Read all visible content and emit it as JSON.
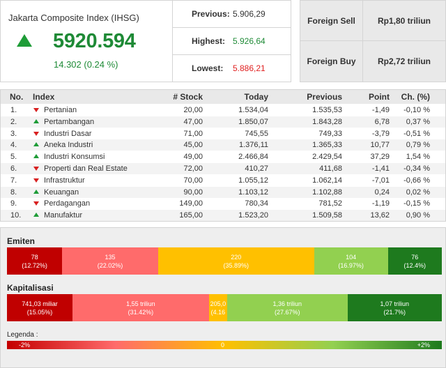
{
  "index": {
    "title": "Jakarta Composite Index (IHSG)",
    "value": "5920.594",
    "change": "14.302 (0.24 %)",
    "direction_icon": "up-triangle-icon",
    "color": "#1e8a36"
  },
  "stats": [
    {
      "label": "Previous:",
      "value": "5.906,29",
      "color": "#333333"
    },
    {
      "label": "Highest:",
      "value": "5.926,64",
      "color": "#1e8a36"
    },
    {
      "label": "Lowest:",
      "value": "5.886,21",
      "color": "#e02020"
    }
  ],
  "foreign": [
    {
      "label": "Foreign Sell",
      "value": "Rp1,80 triliun"
    },
    {
      "label": "Foreign Buy",
      "value": "Rp2,72 triliun"
    }
  ],
  "table": {
    "headers": {
      "no": "No.",
      "index": "Index",
      "stock": "# Stock",
      "today": "Today",
      "previous": "Previous",
      "point": "Point",
      "ch": "Ch. (%)"
    },
    "rows": [
      {
        "no": "1.",
        "dir": "down",
        "name": "Pertanian",
        "stock": "20,00",
        "today": "1.534,04",
        "previous": "1.535,53",
        "point": "-1,49",
        "ch": "-0,10 %"
      },
      {
        "no": "2.",
        "dir": "up",
        "name": "Pertambangan",
        "stock": "47,00",
        "today": "1.850,07",
        "previous": "1.843,28",
        "point": "6,78",
        "ch": "0,37 %"
      },
      {
        "no": "3.",
        "dir": "down",
        "name": "Industri Dasar",
        "stock": "71,00",
        "today": "745,55",
        "previous": "749,33",
        "point": "-3,79",
        "ch": "-0,51 %"
      },
      {
        "no": "4.",
        "dir": "up",
        "name": "Aneka Industri",
        "stock": "45,00",
        "today": "1.376,11",
        "previous": "1.365,33",
        "point": "10,77",
        "ch": "0,79 %"
      },
      {
        "no": "5.",
        "dir": "up",
        "name": "Industri Konsumsi",
        "stock": "49,00",
        "today": "2.466,84",
        "previous": "2.429,54",
        "point": "37,29",
        "ch": "1,54 %"
      },
      {
        "no": "6.",
        "dir": "down",
        "name": "Properti dan Real Estate",
        "stock": "72,00",
        "today": "410,27",
        "previous": "411,68",
        "point": "-1,41",
        "ch": "-0,34 %"
      },
      {
        "no": "7.",
        "dir": "down",
        "name": "Infrastruktur",
        "stock": "70,00",
        "today": "1.055,12",
        "previous": "1.062,14",
        "point": "-7,01",
        "ch": "-0,66 %"
      },
      {
        "no": "8.",
        "dir": "up",
        "name": "Keuangan",
        "stock": "90,00",
        "today": "1.103,12",
        "previous": "1.102,88",
        "point": "0,24",
        "ch": "0,02 %"
      },
      {
        "no": "9.",
        "dir": "down",
        "name": "Perdagangan",
        "stock": "149,00",
        "today": "780,34",
        "previous": "781,52",
        "point": "-1,19",
        "ch": "-0,15 %"
      },
      {
        "no": "10.",
        "dir": "up",
        "name": "Manufaktur",
        "stock": "165,00",
        "today": "1.523,20",
        "previous": "1.509,58",
        "point": "13,62",
        "ch": "0,90 %"
      }
    ]
  },
  "emiten": {
    "title": "Emiten",
    "segments": [
      {
        "value": "78",
        "pct": "(12.72%)",
        "fraction": 0.1272,
        "color": "#c00000"
      },
      {
        "value": "135",
        "pct": "(22.02%)",
        "fraction": 0.2202,
        "color": "#ff6b6b"
      },
      {
        "value": "220",
        "pct": "(35.89%)",
        "fraction": 0.3589,
        "color": "#ffc000"
      },
      {
        "value": "104",
        "pct": "(16.97%)",
        "fraction": 0.1697,
        "color": "#92d050"
      },
      {
        "value": "76",
        "pct": "(12.4%)",
        "fraction": 0.124,
        "color": "#1e7a1e"
      }
    ]
  },
  "kapitalisasi": {
    "title": "Kapitalisasi",
    "segments": [
      {
        "value": "741,03 miliar",
        "pct": "(15.05%)",
        "fraction": 0.1505,
        "color": "#c00000"
      },
      {
        "value": "1,55 triliun",
        "pct": "(31.42%)",
        "fraction": 0.3142,
        "color": "#ff6b6b"
      },
      {
        "value": "205,0",
        "pct": "(4.16",
        "fraction": 0.0416,
        "color": "#ffc000"
      },
      {
        "value": "1,36 triliun",
        "pct": "(27.67%)",
        "fraction": 0.2767,
        "color": "#92d050"
      },
      {
        "value": "1,07 triliun",
        "pct": "(21.7%)",
        "fraction": 0.217,
        "color": "#1e7a1e"
      }
    ]
  },
  "legend": {
    "label": "Legenda :",
    "min": "-2%",
    "mid": "0",
    "max": "+2%"
  }
}
